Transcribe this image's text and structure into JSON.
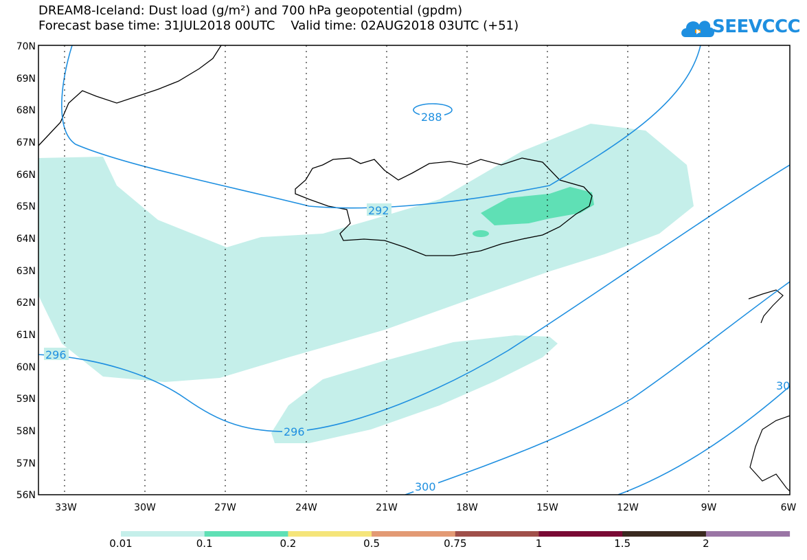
{
  "header": {
    "line1": "DREAM8-Iceland: Dust load (g/m²) and 700 hPa geopotential (gpdm)",
    "line2": "Forecast base time: 31JUL2018 00UTC    Valid time: 02AUG2018 03UTC (+51)"
  },
  "logo": {
    "text": "SEEVCCC",
    "icon": "cloud-icon"
  },
  "map": {
    "lat_labels": [
      "70N",
      "69N",
      "68N",
      "67N",
      "66N",
      "65N",
      "64N",
      "63N",
      "62N",
      "61N",
      "60N",
      "59N",
      "58N",
      "57N",
      "56N"
    ],
    "lon_labels": [
      "33W",
      "30W",
      "27W",
      "24W",
      "21W",
      "18W",
      "15W",
      "12W",
      "9W",
      "6W"
    ],
    "contours": [
      "288",
      "292",
      "296",
      "296",
      "300",
      "30"
    ]
  },
  "colorbar": {
    "labels": [
      "0.01",
      "0.1",
      "0.2",
      "0.5",
      "0.75",
      "1",
      "1.5",
      "2"
    ],
    "colors": [
      "#c5efea",
      "#5fe0b5",
      "#f5e57a",
      "#e39a74",
      "#a0504a",
      "#7a0a35",
      "#3a2a20",
      "#9a75a5"
    ]
  }
}
